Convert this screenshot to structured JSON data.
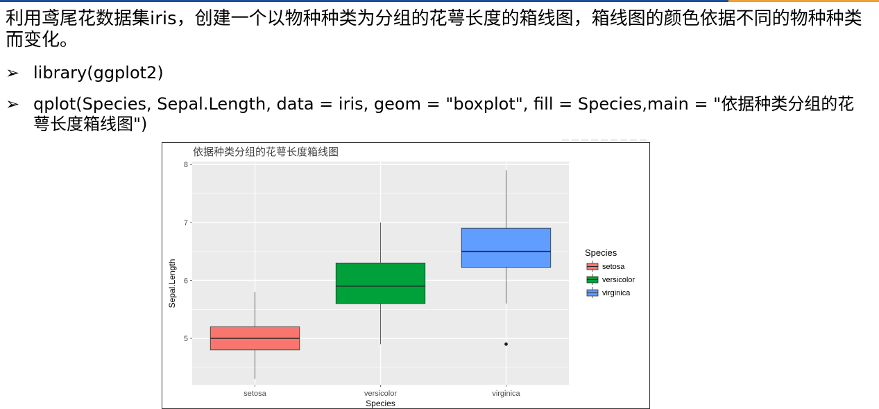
{
  "slide": {
    "intro": "利用鸢尾花数据集iris，创建一个以物种种类为分组的花萼长度的箱线图，箱线图的颜色依据不同的物种种类而变化。",
    "bullet_mark": "➢",
    "bullets": [
      "library(ggplot2)",
      "qplot(Species, Sepal.Length, data = iris, geom = \"boxplot\", fill = Species,main = \"依据种类分组的花萼长度箱线图\")"
    ]
  },
  "colors": {
    "top_bar_blue": "#1f4e9c",
    "top_bar_orange": "#f0a030",
    "panel_bg": "#ebebeb",
    "grid": "#ffffff",
    "setosa": "#f8766d",
    "versicolor": "#00a13a",
    "virginica": "#619cff"
  },
  "chart_data": {
    "type": "boxplot",
    "title": "依据种类分组的花萼长度箱线图",
    "xlabel": "Species",
    "ylabel": "Sepal.Length",
    "ylim": [
      4.2,
      8.05
    ],
    "yticks": [
      5,
      6,
      7,
      8
    ],
    "grid": true,
    "legend": {
      "title": "Species",
      "placement": "right"
    },
    "categories": [
      "setosa",
      "versicolor",
      "virginica"
    ],
    "boxes": [
      {
        "name": "setosa",
        "min": 4.3,
        "q1": 4.8,
        "median": 5.0,
        "q3": 5.2,
        "max": 5.8,
        "outliers": []
      },
      {
        "name": "versicolor",
        "min": 4.9,
        "q1": 5.6,
        "median": 5.9,
        "q3": 6.3,
        "max": 7.0,
        "outliers": []
      },
      {
        "name": "virginica",
        "min": 5.6,
        "q1": 6.225,
        "median": 6.5,
        "q3": 6.9,
        "max": 7.9,
        "outliers": [
          4.9
        ]
      }
    ]
  }
}
